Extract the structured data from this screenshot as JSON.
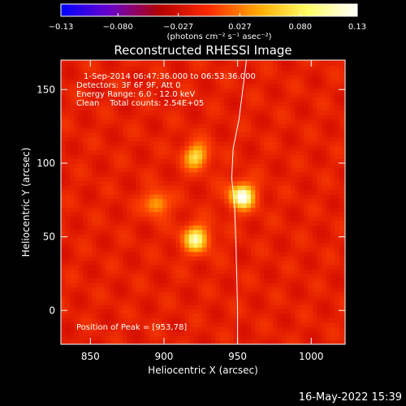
{
  "chart_data": {
    "type": "heatmap",
    "title": "Reconstructed RHESSI Image",
    "xlabel": "Heliocentric X (arcsec)",
    "ylabel": "Heliocentric Y (arcsec)",
    "xlim": [
      830,
      1023
    ],
    "ylim": [
      -23,
      170
    ],
    "x_ticks": [
      850,
      900,
      950,
      1000
    ],
    "y_ticks": [
      0,
      50,
      100,
      150
    ],
    "grid": false,
    "colorbar": {
      "location": "top",
      "unit": "(photons cm⁻² s⁻¹ asec⁻²)",
      "range": [
        -0.13,
        0.13
      ],
      "tick_values": [
        -0.13,
        -0.08,
        -0.027,
        0.027,
        0.08,
        0.13
      ],
      "tick_labels": [
        "−0.13",
        "−0.080",
        "−0.027",
        "0.027",
        "0.080",
        "0.13"
      ],
      "colors": [
        "#0000ff",
        "#6a00c8",
        "#b20000",
        "#ff2a00",
        "#ffaa00",
        "#ffff66",
        "#ffffff"
      ]
    },
    "background_level": 0.035,
    "sources": [
      {
        "x": 922,
        "y": 105,
        "peak": 0.105,
        "sigma": 6.5
      },
      {
        "x": 953,
        "y": 78,
        "peak": 0.13,
        "sigma": 6.8
      },
      {
        "x": 895,
        "y": 73,
        "peak": 0.095,
        "sigma": 6.0
      },
      {
        "x": 922,
        "y": 49,
        "peak": 0.115,
        "sigma": 7.0
      }
    ],
    "limb_curve": [
      [
        956,
        170
      ],
      [
        951,
        130
      ],
      [
        947,
        110
      ],
      [
        946,
        90
      ],
      [
        948,
        70
      ],
      [
        949,
        40
      ],
      [
        950,
        0
      ],
      [
        950,
        -23
      ]
    ],
    "info_lines": [
      "1-Sep-2014 06:47:36.000 to 06:53:36.000",
      "Detectors: 3F 6F 9F, Att 0",
      "Energy Range: 6.0 - 12.0 keV",
      "Clean    Total counts: 2.54E+05"
    ],
    "peak_label": "Position of Peak = [953,78]",
    "timestamp": "16-May-2022 15:39"
  }
}
